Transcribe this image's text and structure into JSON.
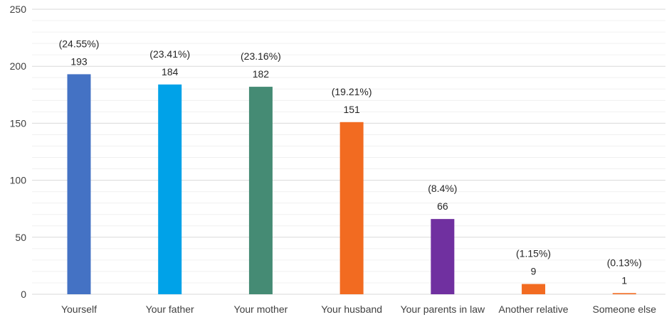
{
  "chart_data": {
    "type": "bar",
    "categories": [
      "Yourself",
      "Your father",
      "Your mother",
      "Your husband",
      "Your parents in law",
      "Another relative",
      "Someone else"
    ],
    "values": [
      193,
      184,
      182,
      151,
      66,
      9,
      1
    ],
    "percent_labels": [
      "(24.55%)",
      "(23.41%)",
      "(23.16%)",
      "(19.21%)",
      "(8.4%)",
      "(1.15%)",
      "(0.13%)"
    ],
    "colors": [
      "#4472C4",
      "#00A2E8",
      "#458B74",
      "#F26B21",
      "#7030A0",
      "#F26B21",
      "#F26B21"
    ],
    "ylim": [
      0,
      250
    ],
    "yticks": [
      0,
      50,
      100,
      150,
      200,
      250
    ],
    "minor_step": 10,
    "grid": true,
    "legend": "none"
  }
}
